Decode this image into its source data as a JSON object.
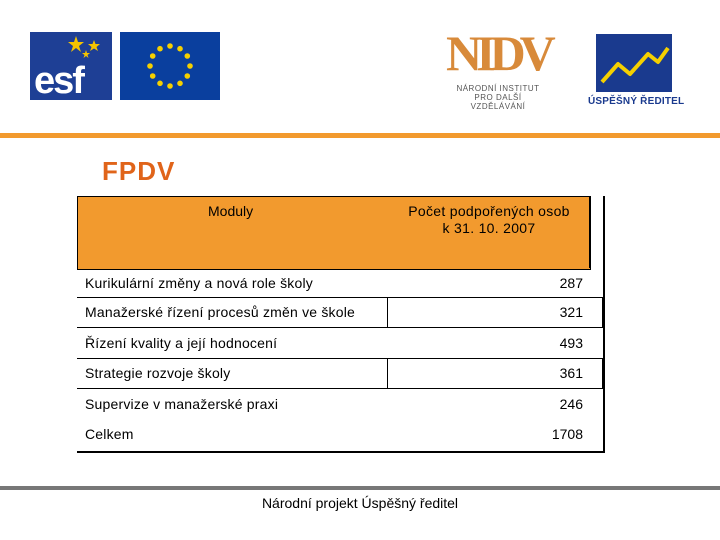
{
  "logos": {
    "esf": "esf",
    "nidv_mark": "NIDV",
    "nidv_lines": [
      "NÁRODNÍ INSTITUT",
      "PRO DALŠÍ",
      "VZDĚLÁVÁNÍ"
    ],
    "usp_label": "ÚSPĚŠNÝ ŘEDITEL"
  },
  "title": "FPDV",
  "table": {
    "header": {
      "col1": "Moduly",
      "col2_line1": "Počet podpořených osob",
      "col2_line2": "k 31. 10. 2007"
    },
    "rows": [
      {
        "name": "Kurikulární změny a nová role školy",
        "value": "287"
      },
      {
        "name": "Manažerské řízení procesů změn ve škole",
        "value": "321"
      },
      {
        "name": "Řízení kvality a její  hodnocení",
        "value": "493"
      },
      {
        "name": "Strategie rozvoje školy",
        "value": "361"
      },
      {
        "name": "Supervize v manažerské praxi",
        "value": "246"
      },
      {
        "name": "Celkem",
        "value": "1708"
      }
    ]
  },
  "footer": "Národní projekt Úspěšný ředitel",
  "colors": {
    "accent": "#f29a2e",
    "title": "#e0641a",
    "eu_blue": "#0a3f9e"
  }
}
